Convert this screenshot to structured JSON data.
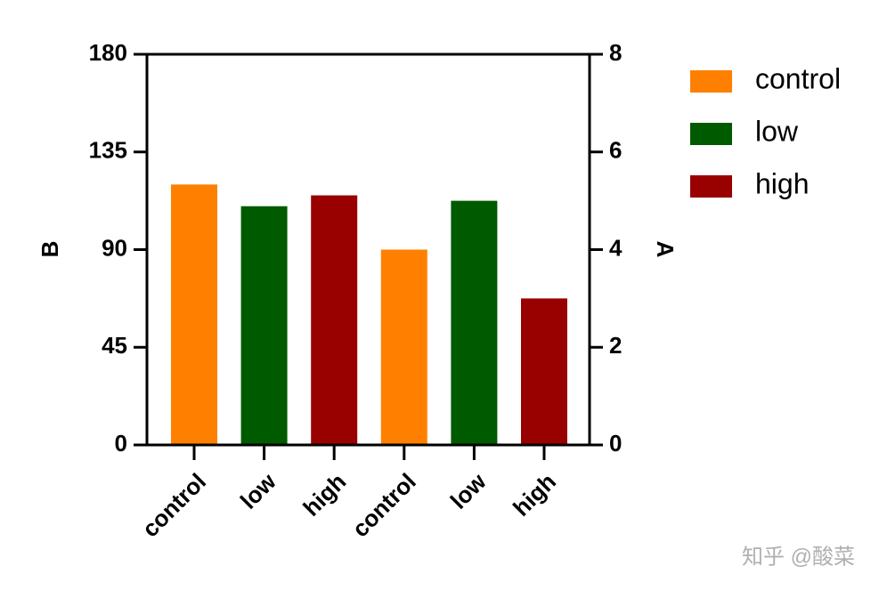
{
  "chart_data": {
    "type": "bar",
    "categories": [
      "control",
      "low",
      "high",
      "control",
      "low",
      "high"
    ],
    "values": [
      120,
      110,
      115,
      4,
      5,
      3
    ],
    "colors": [
      "#ff8000",
      "#005a00",
      "#990000",
      "#ff8000",
      "#005a00",
      "#990000"
    ],
    "axes": [
      "y",
      "y",
      "y",
      "y2",
      "y2",
      "y2"
    ],
    "ylabel": "B",
    "y2label": "A",
    "ylim": [
      0,
      180
    ],
    "yticks": [
      0,
      45,
      90,
      135,
      180
    ],
    "y2lim": [
      0,
      8
    ],
    "y2ticks": [
      0,
      2,
      4,
      6,
      8
    ],
    "legend": [
      {
        "name": "control",
        "color": "#ff8000"
      },
      {
        "name": "low",
        "color": "#005a00"
      },
      {
        "name": "high",
        "color": "#990000"
      }
    ],
    "watermark": "知乎 @酸菜"
  }
}
